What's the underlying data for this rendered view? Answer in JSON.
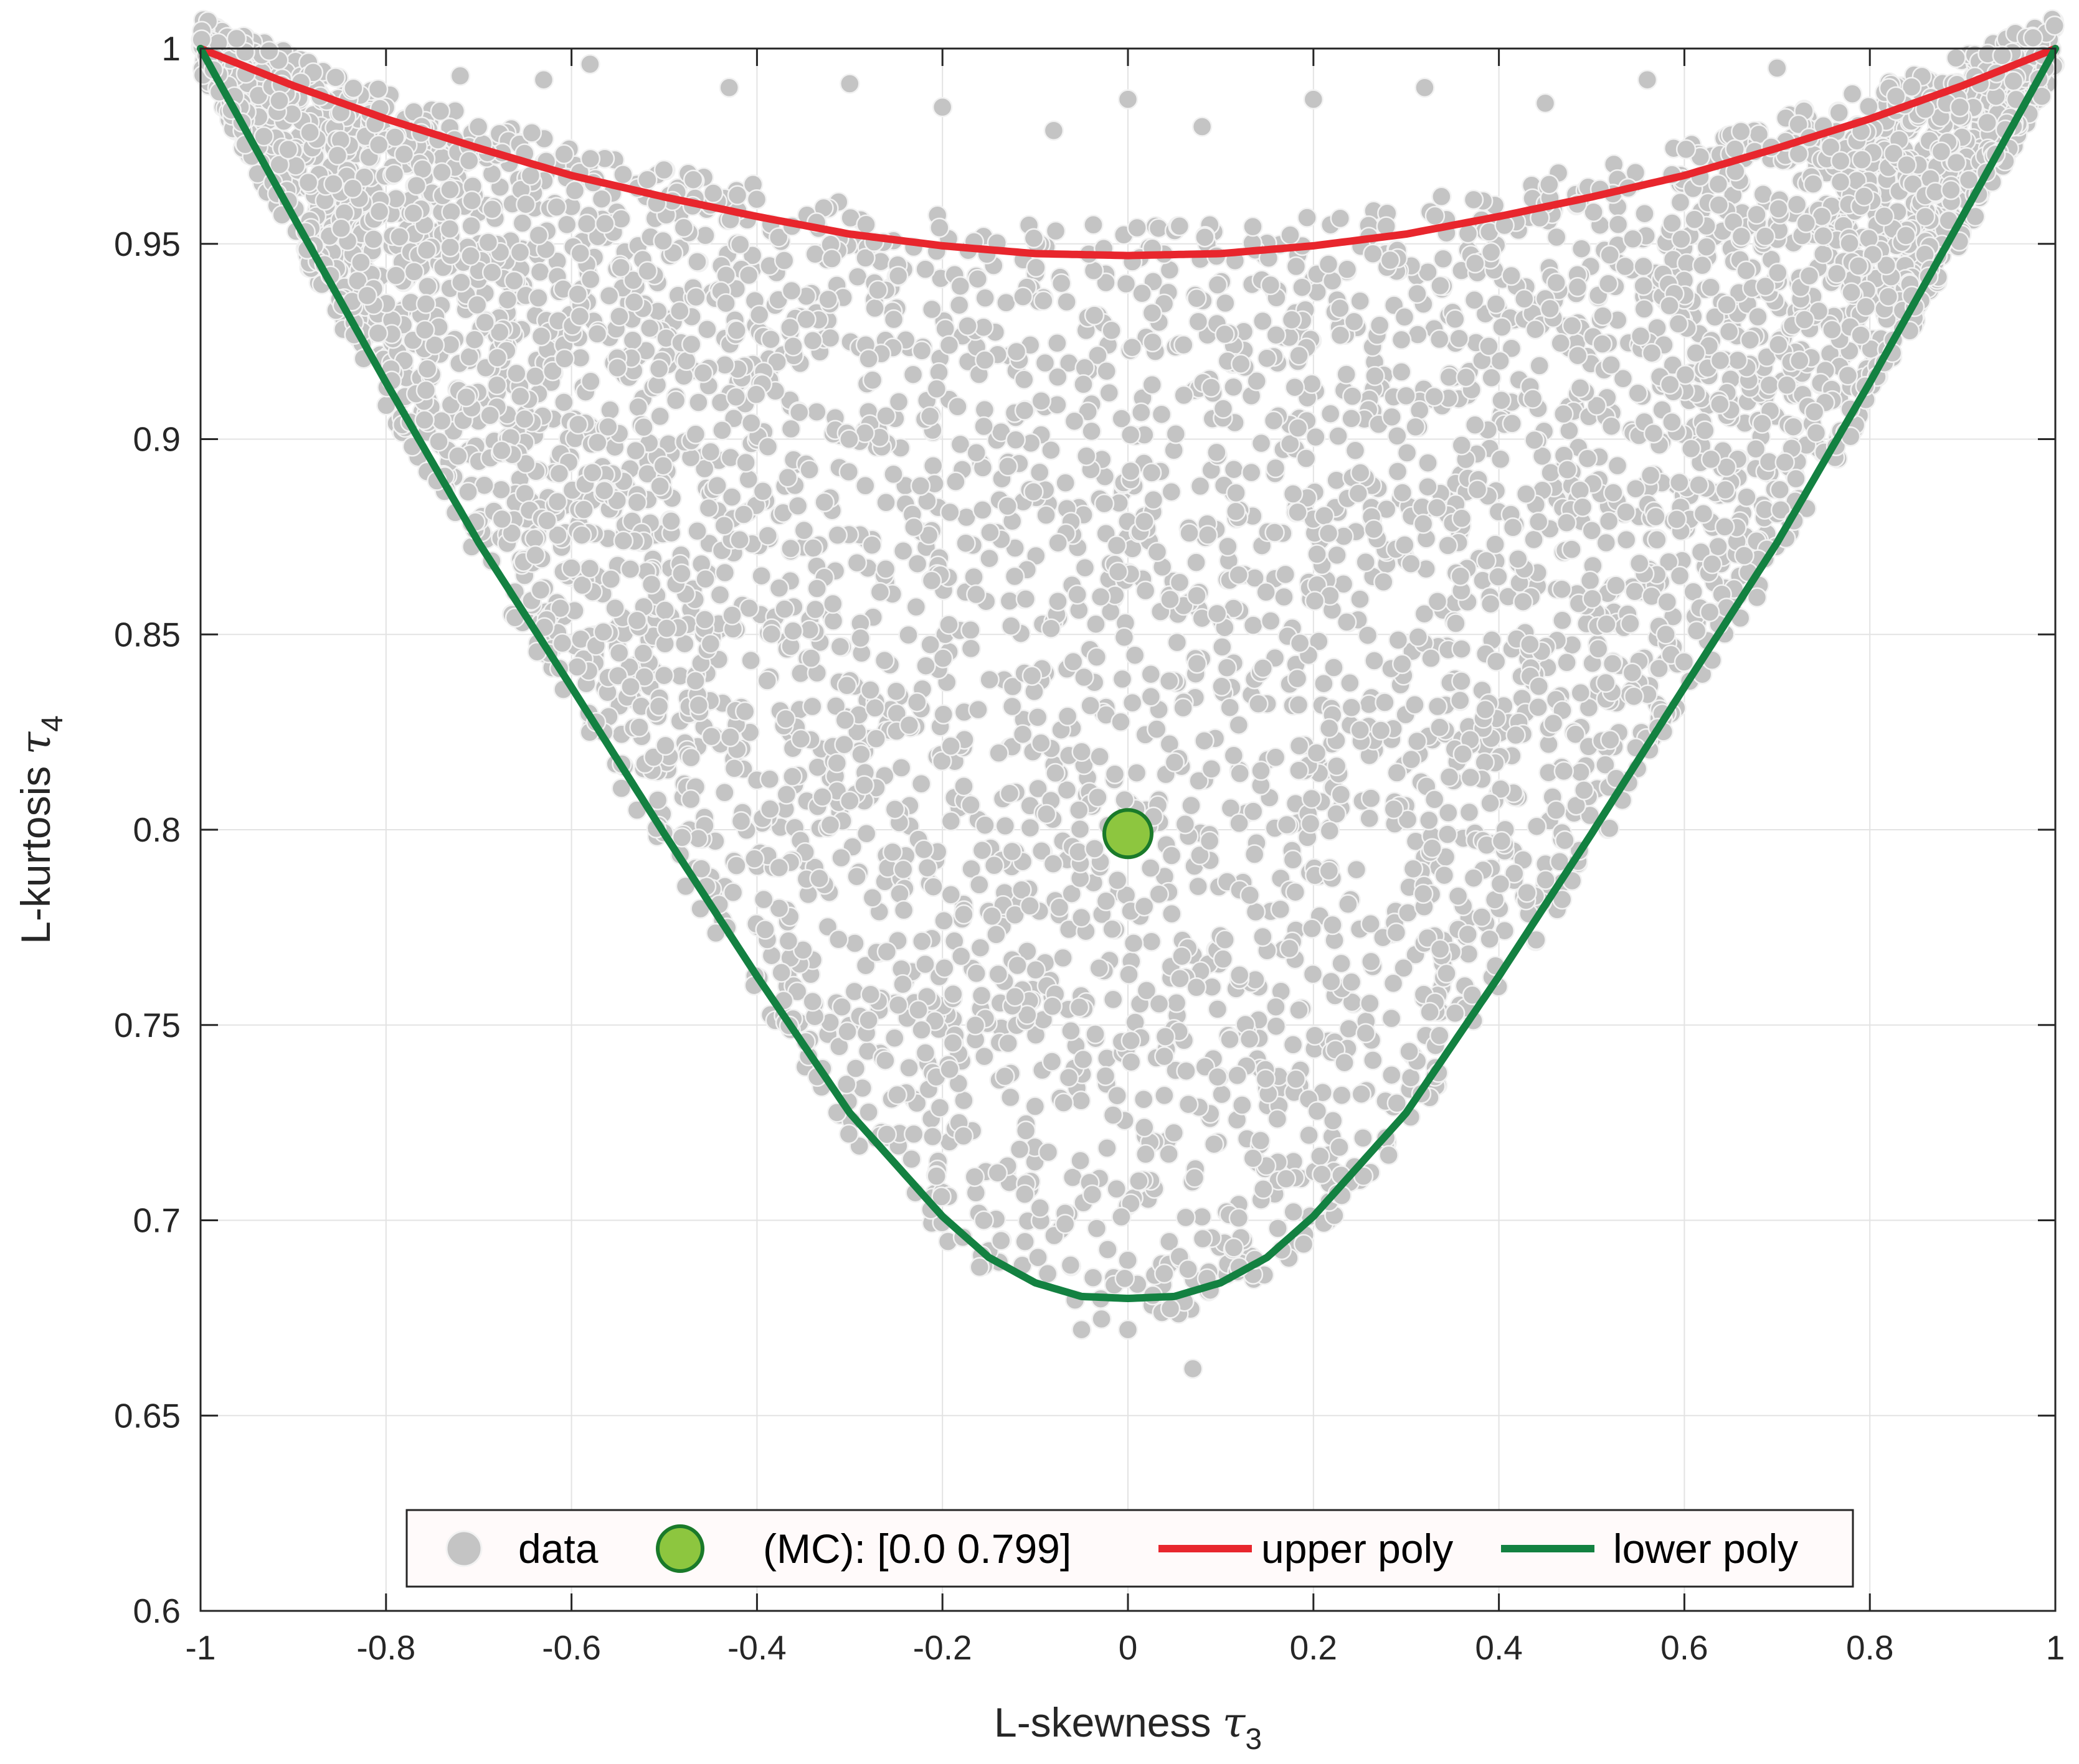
{
  "chart_data": {
    "type": "scatter",
    "title": "",
    "xlabel": "L-skewness",
    "xlabel_symbol": "τ",
    "xlabel_subscript": "3",
    "ylabel": "L-kurtosis",
    "ylabel_symbol": "τ",
    "ylabel_subscript": "4",
    "xlim": [
      -1,
      1
    ],
    "ylim": [
      0.6,
      1
    ],
    "grid": true,
    "xticks": [
      -1,
      -0.8,
      -0.6,
      -0.4,
      -0.2,
      0,
      0.2,
      0.4,
      0.6,
      0.8,
      1
    ],
    "xtick_labels": [
      "-1",
      "-0.8",
      "-0.6",
      "-0.4",
      "-0.2",
      "0",
      "0.2",
      "0.4",
      "0.6",
      "0.8",
      "1"
    ],
    "yticks": [
      0.6,
      0.65,
      0.7,
      0.75,
      0.8,
      0.85,
      0.9,
      0.95,
      1
    ],
    "ytick_labels": [
      "0.6",
      "0.65",
      "0.7",
      "0.75",
      "0.8",
      "0.85",
      "0.9",
      "0.95",
      "1"
    ],
    "legend_position": "bottom-center",
    "series": [
      {
        "name": "data",
        "kind": "scatter",
        "color": "#c4c4c4",
        "edge_color": "#f2f2f2",
        "description_region": "dense cloud filling the band between the lower and upper curves over x from -1 to 1",
        "outliers": [
          {
            "x": -0.72,
            "y": 0.993
          },
          {
            "x": -0.63,
            "y": 0.992
          },
          {
            "x": -0.58,
            "y": 0.996
          },
          {
            "x": -0.43,
            "y": 0.99
          },
          {
            "x": -0.3,
            "y": 0.991
          },
          {
            "x": -0.2,
            "y": 0.985
          },
          {
            "x": -0.08,
            "y": 0.979
          },
          {
            "x": 0.0,
            "y": 0.987
          },
          {
            "x": 0.08,
            "y": 0.98
          },
          {
            "x": 0.2,
            "y": 0.987
          },
          {
            "x": 0.32,
            "y": 0.99
          },
          {
            "x": 0.45,
            "y": 0.986
          },
          {
            "x": 0.56,
            "y": 0.992
          },
          {
            "x": 0.7,
            "y": 0.995
          },
          {
            "x": -0.6,
            "y": 0.867
          },
          {
            "x": -0.46,
            "y": 0.79
          },
          {
            "x": -0.34,
            "y": 0.756
          },
          {
            "x": -0.26,
            "y": 0.722
          },
          {
            "x": -0.16,
            "y": 0.688
          },
          {
            "x": -0.05,
            "y": 0.672
          },
          {
            "x": 0.0,
            "y": 0.672
          },
          {
            "x": 0.07,
            "y": 0.662
          },
          {
            "x": 0.12,
            "y": 0.688
          },
          {
            "x": 0.29,
            "y": 0.73
          },
          {
            "x": 0.39,
            "y": 0.772
          },
          {
            "x": 0.47,
            "y": 0.815
          },
          {
            "x": 0.52,
            "y": 0.823
          },
          {
            "x": 0.58,
            "y": 0.85
          },
          {
            "x": 0.63,
            "y": 0.868
          }
        ]
      },
      {
        "name": "(MC): [0.0 0.799]",
        "kind": "point",
        "x": [
          0.0
        ],
        "y": [
          0.799
        ],
        "color": "#8dc63f",
        "edge_color": "#1a7a2a"
      },
      {
        "name": "upper poly",
        "kind": "line",
        "color": "#e8262d",
        "x": [
          -1,
          -0.9,
          -0.8,
          -0.7,
          -0.6,
          -0.5,
          -0.4,
          -0.3,
          -0.2,
          -0.1,
          0,
          0.1,
          0.2,
          0.3,
          0.4,
          0.5,
          0.6,
          0.7,
          0.8,
          0.9,
          1
        ],
        "y": [
          1.0,
          0.9905,
          0.982,
          0.9745,
          0.9675,
          0.962,
          0.957,
          0.9525,
          0.9495,
          0.9475,
          0.947,
          0.9475,
          0.9495,
          0.9525,
          0.957,
          0.962,
          0.9675,
          0.9745,
          0.982,
          0.9905,
          1.0
        ]
      },
      {
        "name": "lower poly",
        "kind": "line",
        "color": "#138141",
        "x": [
          -1,
          -0.95,
          -0.9,
          -0.8,
          -0.7,
          -0.6,
          -0.5,
          -0.4,
          -0.3,
          -0.2,
          -0.15,
          -0.1,
          -0.05,
          0,
          0.05,
          0.1,
          0.15,
          0.2,
          0.3,
          0.4,
          0.5,
          0.6,
          0.7,
          0.8,
          0.9,
          0.95,
          1
        ],
        "y": [
          1.0,
          0.9785,
          0.957,
          0.9145,
          0.8735,
          0.8365,
          0.799,
          0.7625,
          0.7275,
          0.701,
          0.6905,
          0.684,
          0.6805,
          0.68,
          0.6805,
          0.684,
          0.6905,
          0.701,
          0.7275,
          0.7625,
          0.799,
          0.8365,
          0.8735,
          0.9145,
          0.957,
          0.9785,
          1.0
        ]
      }
    ]
  },
  "legend": {
    "entries": [
      {
        "label": "data",
        "marker": "dot-gray"
      },
      {
        "label": "(MC): [0.0 0.799]",
        "marker": "dot-green"
      },
      {
        "label": "upper poly",
        "marker": "line-red"
      },
      {
        "label": "lower poly",
        "marker": "line-green"
      }
    ]
  }
}
